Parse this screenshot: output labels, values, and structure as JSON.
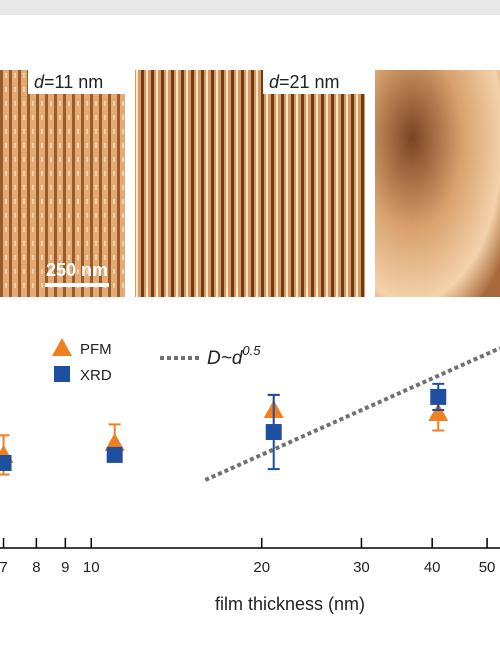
{
  "images": [
    {
      "label_symbol": "d",
      "label_text": "=11 nm",
      "scale_bar": "250 nm"
    },
    {
      "label_symbol": "d",
      "label_text": "=21 nm"
    },
    {}
  ],
  "chart_data": {
    "type": "scatter",
    "xlabel": "film thickness (nm)",
    "log_x": true,
    "xlim": [
      6.9,
      52.7
    ],
    "ylim": [
      0,
      100
    ],
    "xticks": [
      7,
      8,
      9,
      10,
      20,
      30,
      40,
      50
    ],
    "series": [
      {
        "name": "PFM",
        "color": "#f07f1f",
        "marker": "triangle",
        "x": [
          7,
          11,
          21,
          41
        ],
        "values": [
          42.7,
          48.2,
          63.3,
          61.9
        ],
        "errors": [
          9,
          8.5,
          7,
          8
        ]
      },
      {
        "name": "XRD",
        "color": "#1f4fa0",
        "marker": "square",
        "x": [
          7,
          11,
          21,
          41
        ],
        "values": [
          39,
          42.7,
          53.2,
          69.3
        ],
        "errors": [
          2,
          3,
          17,
          6
        ]
      }
    ],
    "fit": {
      "color": "#707070",
      "x": [
        15.9,
        52.7
      ],
      "values": [
        31.2,
        91.7
      ],
      "annotation": {
        "text": "D~d",
        "superscript": "0.5"
      }
    }
  }
}
